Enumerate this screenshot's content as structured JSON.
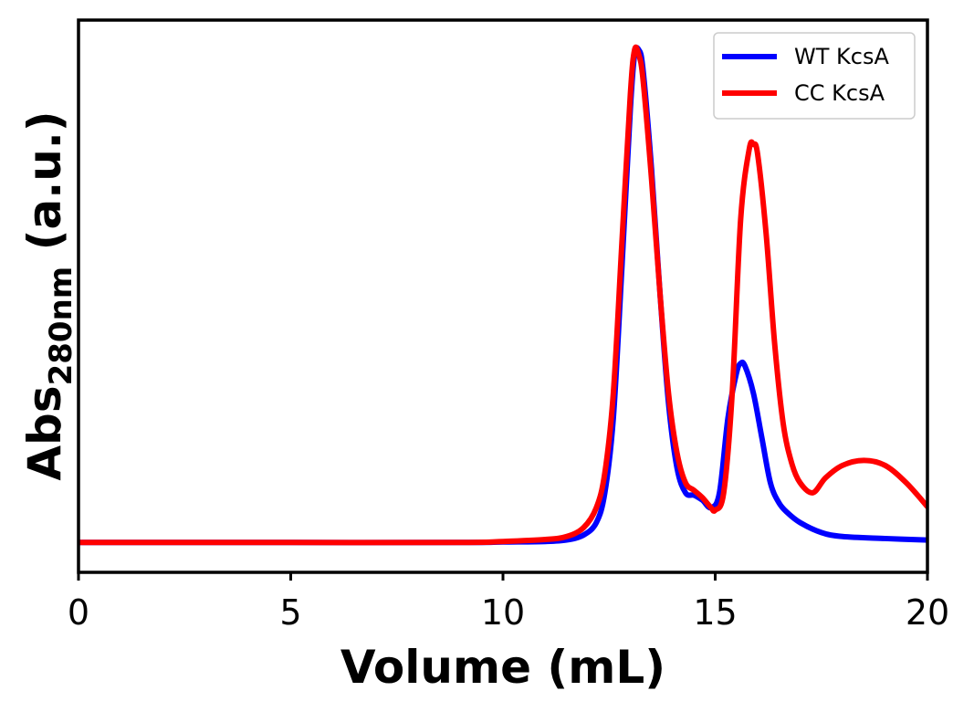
{
  "chart_data": {
    "type": "line",
    "title": "",
    "xlabel": "Volume (mL)",
    "ylabel": {
      "main": "Abs",
      "subscript": "280nm",
      "suffix": " (a.u.)"
    },
    "xlim": [
      0,
      20
    ],
    "ylim": [
      -0.06,
      1.05
    ],
    "xticks": [
      0,
      5,
      10,
      15,
      20
    ],
    "xtick_labels": [
      "0",
      "5",
      "10",
      "15",
      "20"
    ],
    "yticks_visible": false,
    "grid": false,
    "legend_position": "top-right",
    "series": [
      {
        "name": "WT KcsA",
        "color": "#0000ff",
        "x": [
          0,
          0.3,
          1.5,
          1.7,
          2,
          5,
          9,
          10,
          11,
          11.5,
          11.9,
          12.2,
          12.4,
          12.6,
          12.8,
          13.0,
          13.1,
          13.2,
          13.3,
          13.5,
          13.7,
          13.9,
          14.1,
          14.3,
          14.5,
          14.7,
          14.9,
          15.1,
          15.3,
          15.5,
          15.6,
          15.7,
          15.9,
          16.1,
          16.3,
          16.5,
          16.7,
          17.0,
          17.5,
          18,
          19,
          20
        ],
        "y": [
          0.0,
          0.0,
          0.0,
          0.0,
          0.0,
          0.0,
          0.0,
          0.001,
          0.002,
          0.005,
          0.015,
          0.04,
          0.1,
          0.25,
          0.55,
          0.87,
          0.98,
          0.99,
          0.95,
          0.75,
          0.5,
          0.28,
          0.15,
          0.1,
          0.095,
          0.085,
          0.07,
          0.1,
          0.25,
          0.34,
          0.36,
          0.355,
          0.3,
          0.21,
          0.12,
          0.08,
          0.06,
          0.04,
          0.02,
          0.012,
          0.008,
          0.005
        ]
      },
      {
        "name": "CC KcsA",
        "color": "#ff0000",
        "x": [
          0,
          0.3,
          1.5,
          1.7,
          2,
          5,
          9,
          10,
          11,
          11.5,
          11.9,
          12.2,
          12.4,
          12.6,
          12.8,
          13.0,
          13.1,
          13.2,
          13.3,
          13.5,
          13.7,
          13.9,
          14.1,
          14.3,
          14.5,
          14.7,
          14.9,
          15.0,
          15.2,
          15.4,
          15.6,
          15.8,
          15.9,
          16.0,
          16.2,
          16.4,
          16.6,
          16.8,
          17.0,
          17.3,
          17.6,
          18.0,
          18.5,
          19.0,
          19.5,
          20
        ],
        "y": [
          0.0,
          0.0,
          0.0,
          0.0,
          0.0,
          0.0,
          0.0,
          0.002,
          0.006,
          0.012,
          0.03,
          0.07,
          0.14,
          0.3,
          0.6,
          0.9,
          0.99,
          0.98,
          0.93,
          0.73,
          0.5,
          0.3,
          0.18,
          0.12,
          0.105,
          0.09,
          0.07,
          0.065,
          0.1,
          0.3,
          0.65,
          0.79,
          0.8,
          0.78,
          0.62,
          0.4,
          0.24,
          0.16,
          0.12,
          0.1,
          0.13,
          0.155,
          0.165,
          0.155,
          0.12,
          0.072
        ]
      }
    ]
  }
}
